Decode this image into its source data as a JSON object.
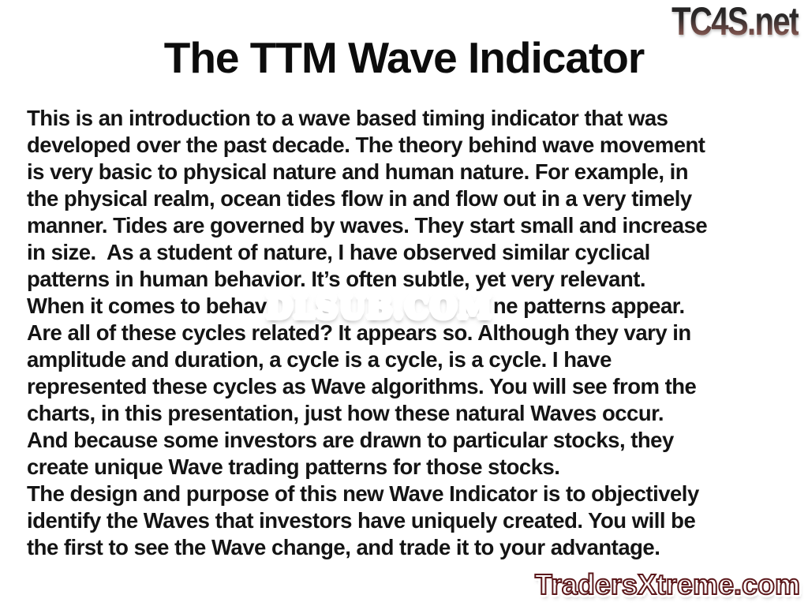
{
  "slide": {
    "title": "The TTM Wave Indicator",
    "paragraph_lines_before": [
      "This is an introduction to a wave based timing indicator that was",
      "developed over the past decade. The theory behind wave movement",
      "is very basic to physical nature and human nature. For example, in",
      "the physical realm, ocean tides flow in and flow out in a very timely",
      "manner. Tides are governed by waves. They start small and increase",
      "in size.  As a student of nature, I have observed similar cyclical",
      "patterns in human behavior. It’s often subtle, yet very relevant."
    ],
    "obscured_line": {
      "visible_prefix": "When it comes to behavi",
      "visible_suffix": "ne patterns appear."
    },
    "paragraph_lines_after": [
      "Are all of these cycles related? It appears so. Although they vary in",
      "amplitude and duration, a cycle is a cycle, is a cycle. I have",
      "represented these cycles as Wave algorithms. You will see from the",
      "charts, in this presentation, just how these natural Waves occur.",
      "And because some investors are drawn to particular stocks, they",
      "create unique Wave trading patterns for those stocks.",
      "The design and purpose of this new Wave Indicator is to objectively",
      "identify the Waves that investors have uniquely created. You will be",
      "the first to see the Wave change, and trade it to your advantage."
    ]
  },
  "watermarks": {
    "top_right_logo": "TC4S.net",
    "center_overlay": "DLSUB.COM",
    "bottom_right_logo": "TradersXtreme.com"
  },
  "colors": {
    "body_text": "#141414",
    "dlsub_red": "#c5232a",
    "dlsub_outline": "#ffffff",
    "tradersxtreme_rose": "#cf6d72",
    "tradersxtreme_outline": "#5c181b",
    "tc4s_gradient_top": "#1f1f1f",
    "tc4s_gradient_bottom": "#9c6e64"
  }
}
